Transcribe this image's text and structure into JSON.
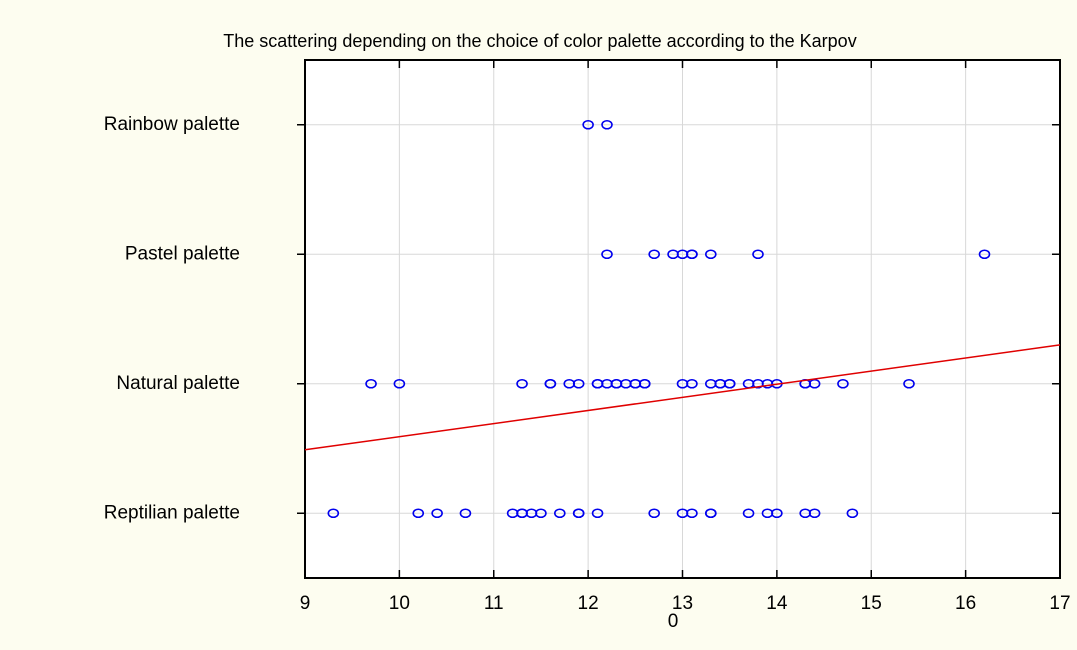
{
  "chart_data": {
    "type": "scatter",
    "title": "The scattering depending on the choice of color palette according to the Karpov",
    "xlabel": "0",
    "xlim": [
      9,
      17
    ],
    "xticks": [
      9,
      10,
      11,
      12,
      13,
      14,
      15,
      16,
      17
    ],
    "ylim": [
      -0.5,
      3.5
    ],
    "yticks": [
      {
        "value": 0,
        "label": "Reptilian palette"
      },
      {
        "value": 1,
        "label": "Natural palette"
      },
      {
        "value": 2,
        "label": "Pastel palette"
      },
      {
        "value": 3,
        "label": "Rainbow palette"
      }
    ],
    "grid": true,
    "color": "#0000ee",
    "x": [
      12.0,
      12.2,
      12.2,
      12.7,
      12.9,
      13.0,
      13.1,
      13.1,
      13.3,
      13.8,
      16.2,
      9.7,
      10.0,
      11.3,
      11.6,
      11.6,
      11.8,
      11.9,
      12.1,
      12.1,
      12.2,
      12.3,
      12.3,
      12.4,
      12.5,
      12.5,
      12.6,
      12.6,
      13.0,
      13.1,
      13.3,
      13.4,
      13.4,
      13.5,
      13.5,
      13.7,
      13.8,
      13.9,
      14.0,
      14.3,
      14.3,
      14.4,
      14.7,
      15.4,
      9.3,
      10.2,
      10.4,
      10.7,
      11.2,
      11.3,
      11.3,
      11.4,
      11.5,
      11.7,
      11.9,
      11.9,
      12.1,
      12.7,
      13.0,
      13.1,
      13.3,
      13.3,
      13.7,
      13.9,
      14.0,
      14.3,
      14.4,
      14.8
    ],
    "y": [
      3,
      3,
      2,
      2,
      2,
      2,
      2,
      2,
      2,
      2,
      2,
      1,
      1,
      1,
      1,
      1,
      1,
      1,
      1,
      1,
      1,
      1,
      1,
      1,
      1,
      1,
      1,
      1,
      1,
      1,
      1,
      1,
      1,
      1,
      1,
      1,
      1,
      1,
      1,
      1,
      1,
      1,
      1,
      1,
      0,
      0,
      0,
      0,
      0,
      0,
      0,
      0,
      0,
      0,
      0,
      0,
      0,
      0,
      0,
      0,
      0,
      0,
      0,
      0,
      0,
      0,
      0,
      0
    ],
    "fit_line": {
      "color": "#e00000",
      "x": [
        9,
        17
      ],
      "y": [
        0.49,
        1.3
      ]
    }
  }
}
